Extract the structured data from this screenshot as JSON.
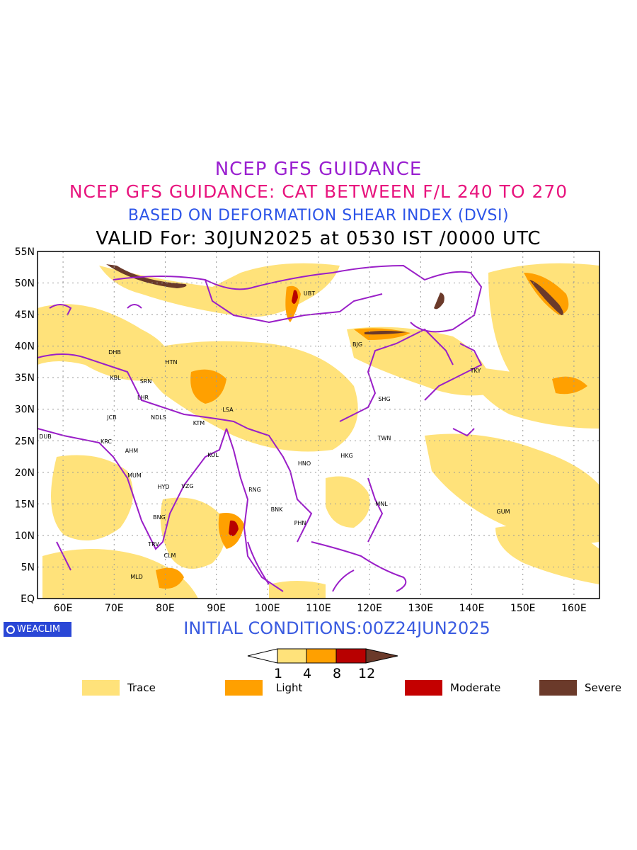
{
  "titles": {
    "line1": "NCEP GFS GUIDANCE",
    "line2": "NCEP GFS GUIDANCE: CAT BETWEEN F/L 240 TO 270",
    "line3": "BASED ON DEFORMATION SHEAR INDEX (DVSI)",
    "line4": "VALID For: 30JUN2025 at 0530 IST /0000 UTC"
  },
  "axes": {
    "lat_labels": [
      "55N",
      "50N",
      "45N",
      "40N",
      "35N",
      "30N",
      "25N",
      "20N",
      "15N",
      "10N",
      "5N",
      "EQ"
    ],
    "lon_labels": [
      "60E",
      "70E",
      "80E",
      "90E",
      "100E",
      "110E",
      "120E",
      "130E",
      "140E",
      "150E",
      "160E"
    ]
  },
  "cities": [
    {
      "code": "UBT"
    },
    {
      "code": "BJG"
    },
    {
      "code": "DHB"
    },
    {
      "code": "HTN"
    },
    {
      "code": "KBL"
    },
    {
      "code": "SRN"
    },
    {
      "code": "LHR"
    },
    {
      "code": "LSA"
    },
    {
      "code": "SHG"
    },
    {
      "code": "TKY"
    },
    {
      "code": "JCB"
    },
    {
      "code": "NDLS"
    },
    {
      "code": "KTM"
    },
    {
      "code": "DUB"
    },
    {
      "code": "KRC"
    },
    {
      "code": "TWN"
    },
    {
      "code": "AHM"
    },
    {
      "code": "KOL"
    },
    {
      "code": "HKG"
    },
    {
      "code": "HNO"
    },
    {
      "code": "MUM"
    },
    {
      "code": "HYD"
    },
    {
      "code": "VZG"
    },
    {
      "code": "RNG"
    },
    {
      "code": "MNL"
    },
    {
      "code": "BNK"
    },
    {
      "code": "GUM"
    },
    {
      "code": "BNG"
    },
    {
      "code": "PHN"
    },
    {
      "code": "TRV"
    },
    {
      "code": "CLM"
    },
    {
      "code": "MLD"
    }
  ],
  "branding": {
    "logo_text": "WEACLIM"
  },
  "initial_conditions": "INITIAL CONDITIONS:00Z24JUN2025",
  "colorbar": {
    "ticks": [
      "1",
      "4",
      "8",
      "12"
    ],
    "colors": [
      "#ffffff",
      "#ffe27a",
      "#ffa000",
      "#b80000",
      "#6b3a2a"
    ]
  },
  "legend": [
    {
      "label": "Trace",
      "color": "#ffe27a"
    },
    {
      "label": "Light",
      "color": "#ffa000"
    },
    {
      "label": "Moderate",
      "color": "#c40000"
    },
    {
      "label": "Severe",
      "color": "#6b3a2a"
    }
  ],
  "colors": {
    "boundaries": "#9a1fc8"
  }
}
